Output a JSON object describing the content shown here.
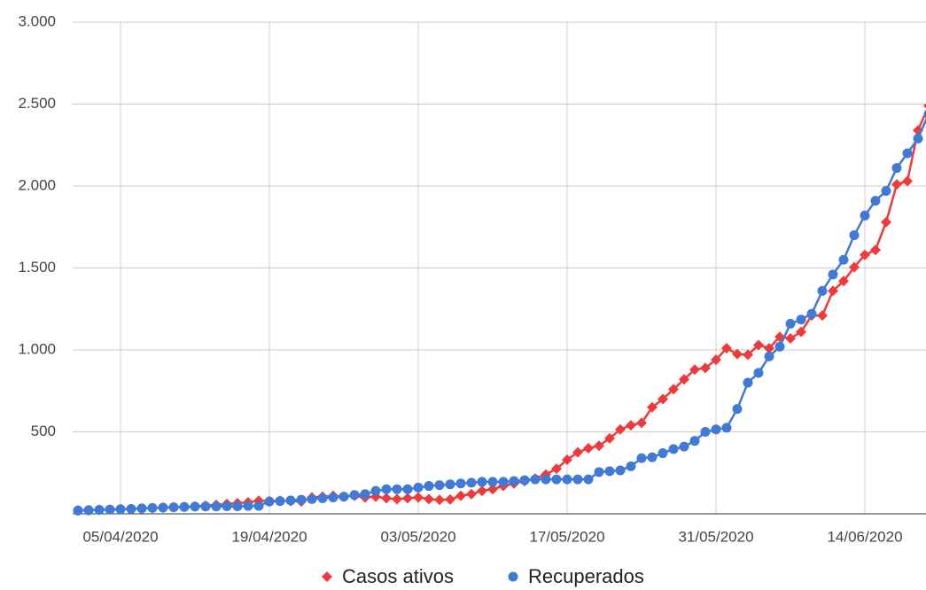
{
  "chart_data": {
    "type": "line",
    "categories": [
      null,
      null,
      null,
      null,
      "05/04/2020",
      null,
      null,
      null,
      null,
      null,
      null,
      null,
      null,
      null,
      null,
      null,
      null,
      null,
      "19/04/2020",
      null,
      null,
      null,
      null,
      null,
      null,
      null,
      null,
      null,
      null,
      null,
      null,
      null,
      "03/05/2020",
      null,
      null,
      null,
      null,
      null,
      null,
      null,
      null,
      null,
      null,
      null,
      null,
      null,
      "17/05/2020",
      null,
      null,
      null,
      null,
      null,
      null,
      null,
      null,
      null,
      null,
      null,
      null,
      null,
      "31/05/2020",
      null,
      null,
      null,
      null,
      null,
      null,
      null,
      null,
      null,
      null,
      null,
      null,
      null,
      "14/06/2020",
      null,
      null,
      null,
      null,
      null,
      null
    ],
    "series": [
      {
        "name": "Casos ativos",
        "color": "#ee3a3a",
        "marker": "diamond",
        "values": [
          20,
          22,
          24,
          26,
          28,
          30,
          32,
          35,
          38,
          40,
          42,
          45,
          50,
          55,
          60,
          65,
          70,
          80,
          78,
          80,
          78,
          75,
          100,
          105,
          110,
          105,
          110,
          100,
          105,
          95,
          90,
          95,
          100,
          90,
          85,
          88,
          110,
          120,
          140,
          150,
          170,
          185,
          200,
          215,
          240,
          275,
          330,
          375,
          400,
          415,
          460,
          515,
          540,
          555,
          650,
          700,
          760,
          820,
          880,
          890,
          940,
          1010,
          975,
          970,
          1030,
          1010,
          1080,
          1070,
          1110,
          1210,
          1210,
          1360,
          1420,
          1505,
          1580,
          1610,
          1780,
          2010,
          2030,
          2340,
          2490
        ]
      },
      {
        "name": "Recuperados",
        "color": "#3f7ad6",
        "marker": "circle",
        "values": [
          20,
          22,
          24,
          26,
          28,
          30,
          33,
          36,
          38,
          40,
          42,
          44,
          45,
          45,
          46,
          46,
          48,
          48,
          75,
          78,
          82,
          86,
          90,
          95,
          100,
          105,
          115,
          120,
          140,
          150,
          150,
          150,
          160,
          170,
          175,
          180,
          185,
          190,
          195,
          195,
          195,
          200,
          205,
          210,
          210,
          210,
          210,
          210,
          210,
          255,
          260,
          265,
          290,
          340,
          345,
          370,
          395,
          410,
          445,
          500,
          515,
          525,
          640,
          800,
          860,
          960,
          1020,
          1160,
          1185,
          1220,
          1360,
          1460,
          1550,
          1700,
          1820,
          1910,
          1970,
          2110,
          2200,
          2290,
          2440
        ]
      }
    ],
    "ylim": [
      0,
      3000
    ],
    "yticks": [
      500,
      {
        "value": 1000,
        "label": "1.000"
      },
      {
        "value": 1500,
        "label": "1.500"
      },
      {
        "value": 2000,
        "label": "2.000"
      },
      {
        "value": 2500,
        "label": "2.500"
      },
      {
        "value": 3000,
        "label": "3.000"
      }
    ],
    "grid": true,
    "legend": "bottom"
  }
}
